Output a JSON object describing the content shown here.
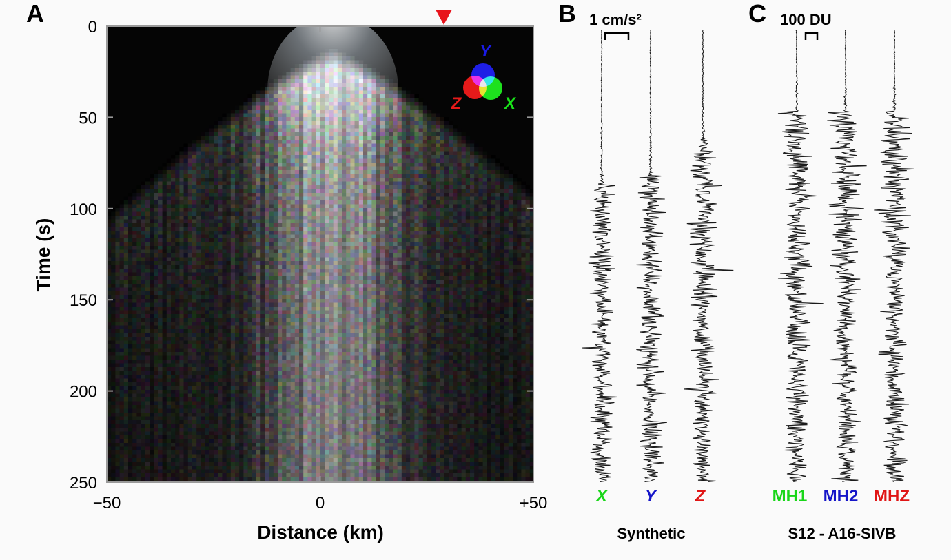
{
  "panels": {
    "a": {
      "letter": "A",
      "xlabel": "Distance (km)",
      "ylabel": "Time (s)",
      "xlim": [
        -50,
        50
      ],
      "ylim": [
        0,
        250
      ],
      "xticks": [
        {
          "value": -50,
          "label": "−50"
        },
        {
          "value": 0,
          "label": "0"
        },
        {
          "value": 50,
          "label": "+50"
        }
      ],
      "yticks": [
        {
          "value": 0,
          "label": "0"
        },
        {
          "value": 50,
          "label": "50"
        },
        {
          "value": 100,
          "label": "100"
        },
        {
          "value": 150,
          "label": "150"
        },
        {
          "value": 200,
          "label": "200"
        },
        {
          "value": 250,
          "label": "250"
        }
      ],
      "station_marker": {
        "distance_km": 29,
        "color": "#e8141c"
      },
      "rgb_legend": {
        "x": {
          "label": "X",
          "color": "#19e019"
        },
        "y": {
          "label": "Y",
          "color": "#1a1ae6"
        },
        "z": {
          "label": "Z",
          "color": "#e61a1a"
        }
      }
    },
    "b": {
      "letter": "B",
      "scale_label": "1 cm/s²",
      "caption": "Synthetic",
      "traces": [
        {
          "label": "X",
          "color": "#19d619"
        },
        {
          "label": "Y",
          "color": "#1515c8"
        },
        {
          "label": "Z",
          "color": "#e01515"
        }
      ]
    },
    "c": {
      "letter": "C",
      "scale_label": "100 DU",
      "caption": "S12 - A16-SIVB",
      "traces": [
        {
          "label": "MH1",
          "color": "#19d619"
        },
        {
          "label": "MH2",
          "color": "#1515c8"
        },
        {
          "label": "MHZ",
          "color": "#e01515"
        }
      ]
    }
  },
  "chart_data": [
    {
      "type": "heatmap",
      "description_source": "panel A",
      "x_axis": {
        "label": "Distance (km)",
        "range": [
          -50,
          50
        ]
      },
      "y_axis": {
        "label": "Time (s)",
        "range": [
          0,
          250
        ],
        "inverted": true
      },
      "first_arrival": {
        "apex_distance_km": 3,
        "apex_time_s": 15,
        "edge_time_s": 100,
        "edge_distance_km": 50
      },
      "channels": [
        "X",
        "Y",
        "Z"
      ],
      "grid": false,
      "legend": "top-right"
    },
    {
      "type": "line",
      "description_source": "panel B",
      "y_axis": {
        "range": [
          0,
          250
        ],
        "inverted": true
      },
      "series": [
        {
          "name": "X",
          "onset_s": 85
        },
        {
          "name": "Y",
          "onset_s": 80
        },
        {
          "name": "Z",
          "onset_s": 60
        }
      ]
    },
    {
      "type": "line",
      "description_source": "panel C",
      "y_axis": {
        "range": [
          0,
          250
        ],
        "inverted": true
      },
      "series": [
        {
          "name": "MH1",
          "onset_s": 45
        },
        {
          "name": "MH2",
          "onset_s": 45
        },
        {
          "name": "MHZ",
          "onset_s": 45
        }
      ]
    }
  ]
}
